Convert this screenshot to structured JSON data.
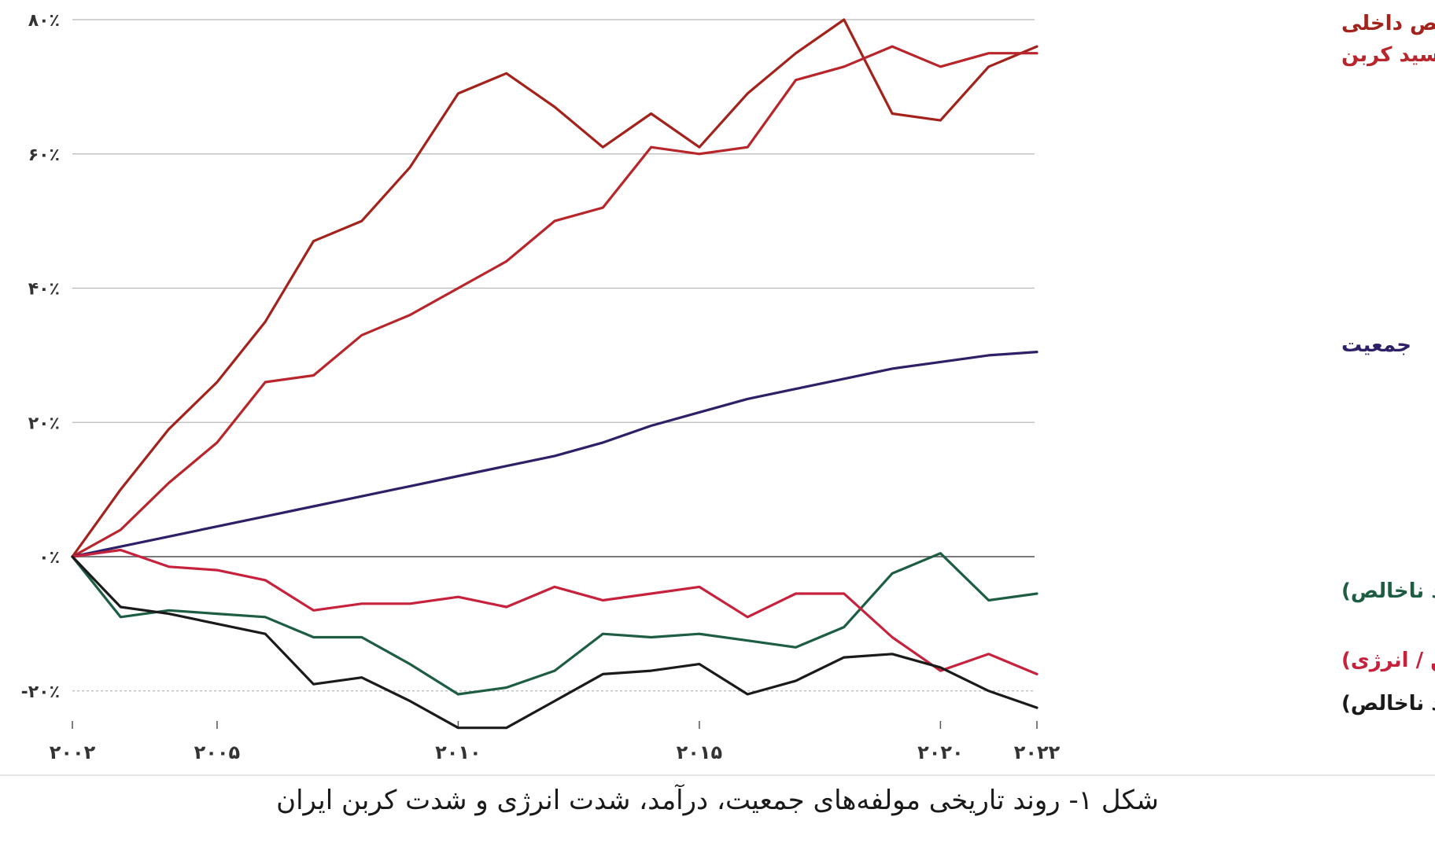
{
  "caption": "شکل ۱- روند تاریخی مولفه‌های جمعیت، درآمد، شدت انرژی و شدت کربن ایران",
  "colors": {
    "gdp": "#a3231c",
    "co2": "#b8262c",
    "population": "#2e1f66",
    "energy_intensity": "#1d5e43",
    "carbon_intensity_energy": "#c7223d",
    "carbon_intensity_gdp": "#1a1a1a",
    "grid": "#b8b8b8",
    "zero_line": "#7a7a7a"
  },
  "chart_data": {
    "type": "line",
    "ylim": [
      -20,
      80
    ],
    "y_ticks": [
      {
        "value": 80,
        "label": "۸۰٪"
      },
      {
        "value": 60,
        "label": "۶۰٪"
      },
      {
        "value": 40,
        "label": "۴۰٪"
      },
      {
        "value": 20,
        "label": "۲۰٪"
      },
      {
        "value": 0,
        "label": "۰٪"
      },
      {
        "value": -20,
        "label": "-۲۰٪"
      }
    ],
    "x_ticks": [
      {
        "value": 2002,
        "label": "۲۰۰۲"
      },
      {
        "value": 2005,
        "label": "۲۰۰۵"
      },
      {
        "value": 2010,
        "label": "۲۰۱۰"
      },
      {
        "value": 2015,
        "label": "۲۰۱۵"
      },
      {
        "value": 2020,
        "label": "۲۰۲۰"
      },
      {
        "value": 2022,
        "label": "۲۰۲۲"
      }
    ],
    "x": [
      2002,
      2003,
      2004,
      2005,
      2006,
      2007,
      2008,
      2009,
      2010,
      2011,
      2012,
      2013,
      2014,
      2015,
      2016,
      2017,
      2018,
      2019,
      2020,
      2021,
      2022
    ],
    "series": [
      {
        "name": "تولید ناخالص داخلی",
        "color_key": "gdp",
        "values": [
          0,
          10,
          19,
          26,
          35,
          47,
          50,
          58,
          69,
          72,
          67,
          61,
          66,
          61,
          69,
          75,
          80,
          66,
          65,
          73,
          76
        ]
      },
      {
        "name": "انتشار دی اکسید کربن",
        "color_key": "co2",
        "values": [
          0,
          4,
          11,
          17,
          26,
          27,
          33,
          36,
          40,
          44,
          50,
          52,
          61,
          60,
          61,
          71,
          73,
          76,
          73,
          75,
          75
        ]
      },
      {
        "name": "جمعیت",
        "color_key": "population",
        "values": [
          0,
          1.5,
          3,
          4.5,
          6,
          7.5,
          9,
          10.5,
          12,
          13.5,
          15,
          17,
          19.5,
          21.5,
          23.5,
          25,
          26.5,
          28,
          29,
          30,
          30.5
        ]
      },
      {
        "name": "شدت انرژی (انرژی / تولید ناخالص)",
        "color_key": "energy_intensity",
        "values": [
          0,
          -9,
          -8,
          -8.5,
          -9,
          -12,
          -12,
          -16,
          -20.5,
          -19.5,
          -17,
          -11.5,
          -12,
          -11.5,
          -12.5,
          -13.5,
          -10.5,
          -2.5,
          0.5,
          -6.5,
          -5.5
        ]
      },
      {
        "name": "شدت کربن (دی اکسید کربن / انرژی)",
        "color_key": "carbon_intensity_energy",
        "values": [
          0,
          1,
          -1.5,
          -2,
          -3.5,
          -8,
          -7,
          -7,
          -6,
          -7.5,
          -4.5,
          -6.5,
          -5.5,
          -4.5,
          -9,
          -5.5,
          -5.5,
          -12,
          -17,
          -14.5,
          -17.5
        ]
      },
      {
        "name": "شدت کربن (کربن / تولید ناخالص)",
        "color_key": "carbon_intensity_gdp",
        "values": [
          0,
          -7.5,
          -8.5,
          -10,
          -11.5,
          -19,
          -18,
          -21.5,
          -25.5,
          -25.5,
          -21.5,
          -17.5,
          -17,
          -16,
          -20.5,
          -18.5,
          -15,
          -14.5,
          -16.5,
          -20,
          -22.5
        ]
      }
    ]
  }
}
